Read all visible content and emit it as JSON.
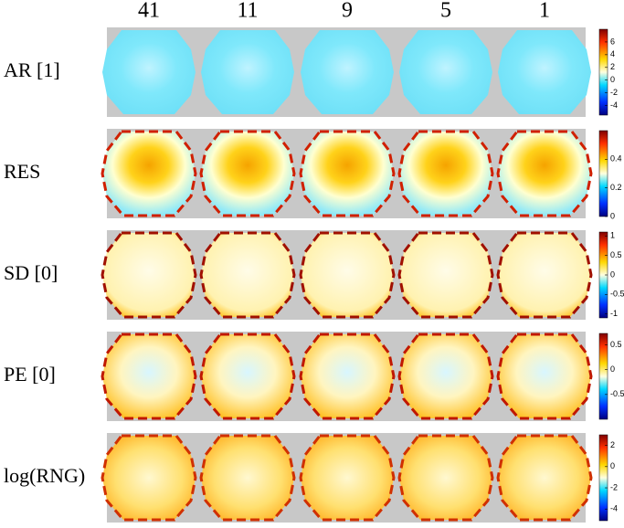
{
  "columns": [
    "41",
    "11",
    "9",
    "5",
    "1"
  ],
  "rows": [
    {
      "label": "AR [1]",
      "colorbar": {
        "lim": [
          -5.5,
          8
        ],
        "ticks": [
          6,
          4,
          2,
          0,
          -2,
          -4
        ]
      }
    },
    {
      "label": "RES",
      "colorbar": {
        "lim": [
          0,
          0.6
        ],
        "ticks": [
          0.4,
          0.2,
          0
        ]
      }
    },
    {
      "label": "SD [0]",
      "colorbar": {
        "lim": [
          -1.1,
          1.1
        ],
        "ticks": [
          1,
          0.5,
          0,
          -0.5,
          -1
        ]
      }
    },
    {
      "label": "PE [0]",
      "colorbar": {
        "lim": [
          -1,
          0.73
        ],
        "ticks": [
          0.5,
          0,
          -0.5
        ]
      }
    },
    {
      "label": "log(RNG)",
      "colorbar": {
        "lim": [
          -5.1,
          3
        ],
        "ticks": [
          2,
          0,
          -2,
          -4
        ]
      }
    }
  ]
}
